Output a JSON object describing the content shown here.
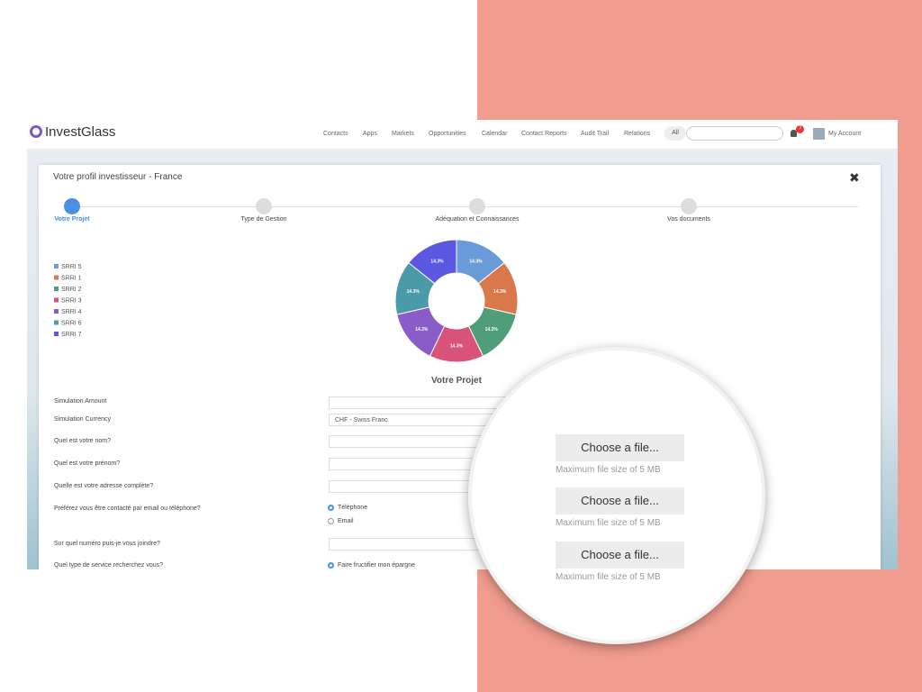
{
  "nav": {
    "logo": "InvestGlass",
    "links": [
      "Contacts",
      "Apps",
      "Markets",
      "Opportunities",
      "Calendar",
      "Contact Reports",
      "Audit Trail",
      "Relations"
    ],
    "search_filter": "All",
    "badge": "7",
    "account": "My Account"
  },
  "modal": {
    "title": "Votre profil investisseur - France",
    "steps": [
      "Votre Projet",
      "Type de Gestion",
      "Adéquation et Connaissances",
      "Vos documents"
    ],
    "section_title": "Votre Projet"
  },
  "chart_data": {
    "type": "pie",
    "categories": [
      "SRRI 5",
      "SRRI 1",
      "SRRI 2",
      "SRRI 3",
      "SRRI 4",
      "SRRI 6",
      "SRRI 7"
    ],
    "values": [
      14.3,
      14.3,
      14.3,
      14.3,
      14.3,
      14.3,
      14.3
    ],
    "value_labels": [
      "14.3%",
      "14.3%",
      "14.3%",
      "14.3%",
      "14.3%",
      "14.3%",
      "14.3%"
    ],
    "colors": [
      "#6a9bd8",
      "#d9784a",
      "#4f9e78",
      "#d9527a",
      "#8a5cc7",
      "#4a9aa8",
      "#5b57e0"
    ]
  },
  "form": {
    "fields": [
      {
        "label": "Simulation Amount"
      },
      {
        "label": "Simulation Currency",
        "value": "CHF - Swiss Franc"
      },
      {
        "label": "Quel est votre nom?"
      },
      {
        "label": "Quel est votre prénom?"
      },
      {
        "label": "Quelle est votre adresse complète?"
      },
      {
        "label": "Préférez vous être contacté par email ou téléphone?"
      },
      {
        "label": "Sur quel numéro puis-je vous joindre?"
      },
      {
        "label": "Quel type de service recherchez vous?"
      }
    ],
    "contact_options": [
      "Téléphone",
      "Email"
    ],
    "service_option": "Faire fructifier mon épargne"
  },
  "uploads": {
    "button": "Choose a file...",
    "hint": "Maximum file size of 5 MB"
  }
}
